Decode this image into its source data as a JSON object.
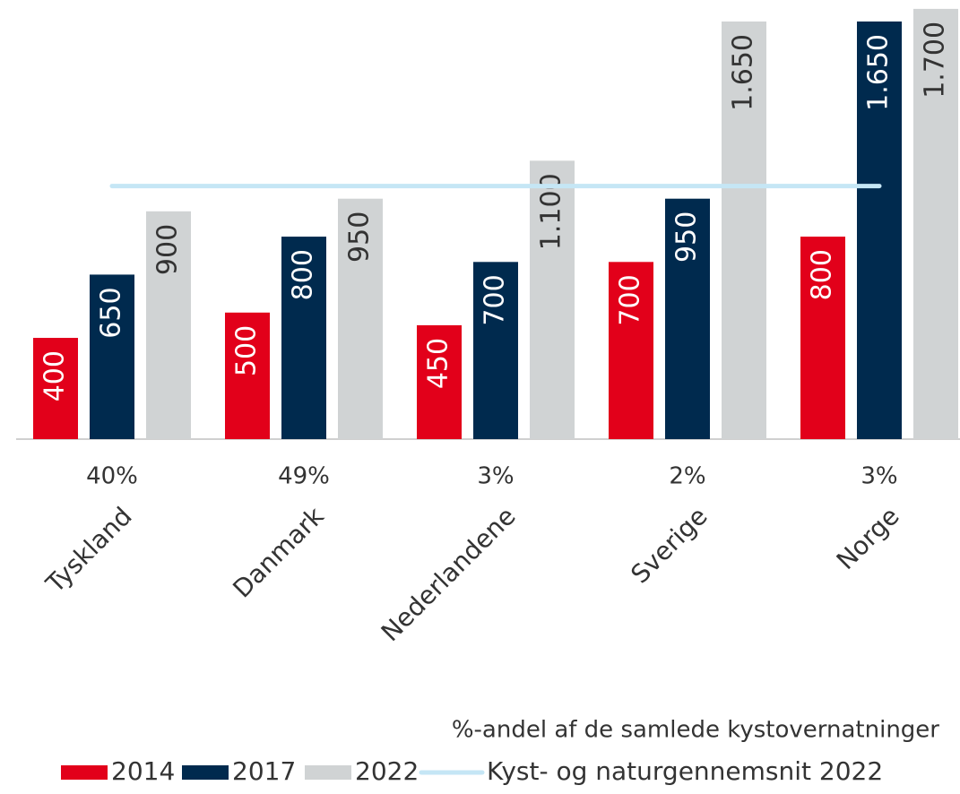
{
  "chart_data": {
    "type": "bar",
    "categories": [
      "Tyskland",
      "Danmark",
      "Nederlandene",
      "Sverige",
      "Norge"
    ],
    "series": [
      {
        "name": "2014",
        "color": "#e2001a",
        "label_color": "#ffffff",
        "values": [
          400,
          500,
          450,
          700,
          800
        ]
      },
      {
        "name": "2017",
        "color": "#002a4e",
        "label_color": "#ffffff",
        "values": [
          650,
          800,
          700,
          950,
          1650
        ],
        "value_labels": [
          "650",
          "800",
          "700",
          "950",
          "1.650"
        ]
      },
      {
        "name": "2022",
        "color": "#d0d3d4",
        "label_color": "#333333",
        "values": [
          900,
          950,
          1100,
          1650,
          1700
        ],
        "value_labels": [
          "900",
          "950",
          "1.100",
          "1.650",
          "1.700"
        ]
      },
      {
        "name": "Kyst- og naturgennemsnit 2022",
        "type": "line",
        "color": "#c5e6f5",
        "values": [
          1000,
          1000,
          1000,
          1000,
          1000
        ]
      }
    ],
    "shares": {
      "name": "%-andel af de samlede kystovernatninger",
      "values": [
        40,
        49,
        3,
        2,
        3
      ],
      "value_labels": [
        "40%",
        "49%",
        "3%",
        "2%",
        "3%"
      ]
    },
    "ylim": [
      0,
      1735
    ],
    "legend": "bottom-right"
  }
}
